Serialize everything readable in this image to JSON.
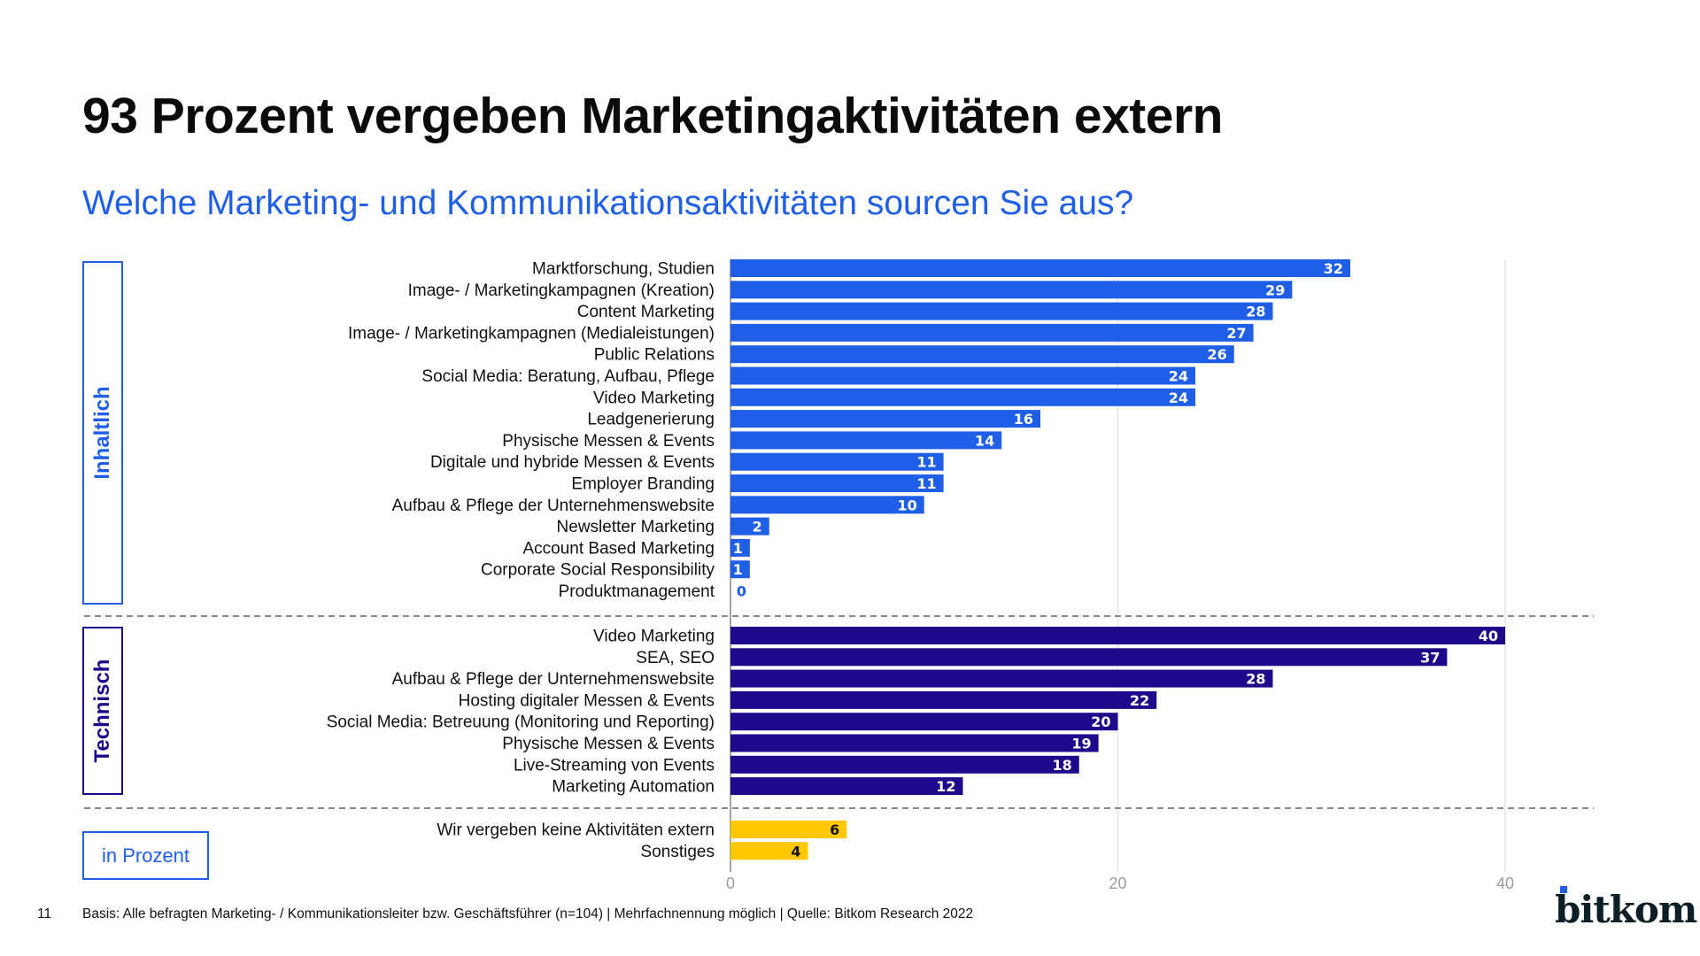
{
  "title": "93 Prozent vergeben Marketingaktivitäten extern",
  "subtitle": "Welche Marketing- und Kommunikationsaktivitäten sourcen Sie aus?",
  "unit_label": "in Prozent",
  "footer": "Basis: Alle befragten Marketing- / Kommunikationsleiter bzw. Geschäftsführer (n=104) | Mehrfachnennung möglich | Quelle: Bitkom Research 2022",
  "page_number": "11",
  "logo_text": "bitkom",
  "colors": {
    "inhaltlich": "#1f5fe8",
    "technisch": "#1c0a8a",
    "sonstige": "#ffc800",
    "title": "#0b0b0b",
    "subtitle": "#1f5fe8"
  },
  "chart_data": {
    "type": "bar",
    "orientation": "horizontal",
    "xlim": [
      0,
      40
    ],
    "ticks": [
      "0",
      "20",
      "40"
    ],
    "grid": true,
    "groups": [
      {
        "name": "Inhaltlich",
        "color": "#1f5fe8",
        "categories": [
          "Marktforschung, Studien",
          "Image- / Marketingkampagnen (Kreation)",
          "Content Marketing",
          "Image- / Marketingkampagnen (Medialeistungen)",
          "Public Relations",
          "Social Media: Beratung, Aufbau, Pflege",
          "Video Marketing",
          "Leadgenerierung",
          "Physische Messen & Events",
          "Digitale und hybride Messen & Events",
          "Employer Branding",
          "Aufbau & Pflege der Unternehmenswebsite",
          "Newsletter Marketing",
          "Account Based Marketing",
          "Corporate Social Responsibility",
          "Produktmanagement"
        ],
        "values": [
          32,
          29,
          28,
          27,
          26,
          24,
          24,
          16,
          14,
          11,
          11,
          10,
          2,
          1,
          1,
          0
        ]
      },
      {
        "name": "Technisch",
        "color": "#1c0a8a",
        "categories": [
          "Video Marketing",
          "SEA, SEO",
          "Aufbau & Pflege der Unternehmenswebsite",
          "Hosting digitaler Messen & Events",
          "Social Media: Betreuung (Monitoring und Reporting)",
          "Physische Messen & Events",
          "Live-Streaming von Events",
          "Marketing Automation"
        ],
        "values": [
          40,
          37,
          28,
          22,
          20,
          19,
          18,
          12
        ]
      },
      {
        "name": "",
        "color": "#ffc800",
        "categories": [
          "Wir vergeben keine Aktivitäten extern",
          "Sonstiges"
        ],
        "values": [
          6,
          4
        ]
      }
    ]
  }
}
